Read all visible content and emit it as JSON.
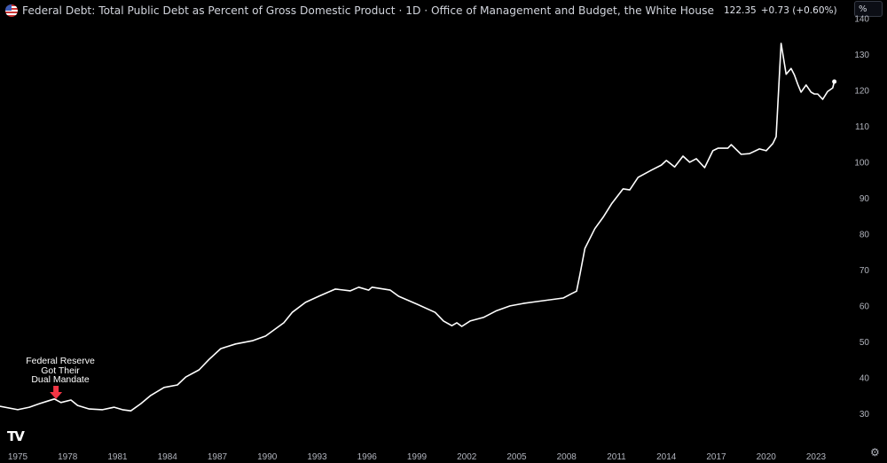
{
  "header": {
    "title": "Federal Debt: Total Public Debt as Percent of Gross Domestic Product · 1D · Office of Management and Budget, the White House",
    "price": "122.35",
    "change": "+0.73 (+0.60%)",
    "unit_button": "%",
    "flag_icon": "us-flag-icon"
  },
  "annotation": {
    "lines": [
      "Federal Reserve",
      "Got Their",
      "Dual Mandate"
    ],
    "arrow_color": "#f23645",
    "year": 1977.3
  },
  "logo": "TV",
  "chart_data": {
    "type": "line",
    "title": "Federal Debt: Total Public Debt as Percent of Gross Domestic Product",
    "xlabel": "",
    "ylabel": "",
    "ylim": [
      21,
      143
    ],
    "xlim": [
      1973.9,
      2027.2
    ],
    "grid": false,
    "line_color": "#ffffff",
    "background": "#000000",
    "y_ticks": [
      30,
      40,
      50,
      60,
      70,
      80,
      90,
      100,
      110,
      120,
      130,
      140
    ],
    "x_ticks": [
      1975,
      1978,
      1981,
      1984,
      1987,
      1990,
      1993,
      1996,
      1999,
      2002,
      2005,
      2008,
      2011,
      2014,
      2017,
      2020,
      2023
    ],
    "series": [
      {
        "x": [
          1973.9,
          1975.0,
          1975.7,
          1976.3,
          1976.8,
          1977.2,
          1977.6,
          1978.2,
          1978.6,
          1979.3,
          1980.1,
          1980.8,
          1981.3,
          1981.8,
          1982.4,
          1983.0,
          1983.8,
          1984.6,
          1985.1,
          1985.9,
          1986.5,
          1987.2,
          1988.1,
          1989.1,
          1989.9,
          1991.0,
          1991.5,
          1992.3,
          1993.1,
          1994.1,
          1995.0,
          1995.5,
          1996.1,
          1996.3,
          1997.4,
          1997.9,
          1999.0,
          2000.1,
          2000.6,
          2001.1,
          2001.4,
          2001.7,
          2002.2,
          2003.0,
          2003.8,
          2004.6,
          2005.4,
          2006.2,
          2007.0,
          2007.8,
          2008.3,
          2008.6,
          2008.8,
          2009.1,
          2009.7,
          2010.2,
          2010.7,
          2011.4,
          2011.8,
          2012.3,
          2013.1,
          2013.7,
          2014.0,
          2014.5,
          2015.0,
          2015.4,
          2015.8,
          2016.3,
          2016.8,
          2017.1,
          2017.7,
          2017.9,
          2018.5,
          2019.0,
          2019.6,
          2020.0,
          2020.4,
          2020.6,
          2020.9,
          2021.2,
          2021.5,
          2021.7,
          2021.9,
          2022.1,
          2022.4,
          2022.7,
          2022.9,
          2023.1,
          2023.4,
          2023.7,
          2024.0,
          2024.1
        ],
        "y": [
          32.0,
          31.0,
          31.7,
          32.7,
          33.4,
          34.0,
          33.0,
          33.7,
          32.2,
          31.2,
          31.0,
          31.7,
          31.0,
          30.7,
          32.7,
          35.0,
          37.2,
          37.9,
          40.1,
          42.1,
          45.0,
          48.0,
          49.3,
          50.2,
          51.5,
          55.2,
          58.1,
          60.9,
          62.6,
          64.6,
          64.1,
          65.1,
          64.3,
          65.1,
          64.3,
          62.6,
          60.4,
          58.1,
          55.7,
          54.4,
          55.2,
          54.2,
          55.7,
          56.7,
          58.6,
          59.9,
          60.6,
          61.1,
          61.6,
          62.1,
          63.3,
          64.0,
          68.5,
          75.9,
          81.4,
          84.6,
          88.3,
          92.5,
          92.2,
          95.7,
          97.7,
          99.1,
          100.4,
          98.6,
          101.6,
          99.9,
          100.9,
          98.4,
          103.1,
          103.8,
          103.8,
          104.8,
          102.1,
          102.3,
          103.6,
          103.1,
          105.1,
          107.0,
          133.0,
          124.4,
          126.0,
          124.2,
          121.6,
          119.4,
          121.4,
          119.4,
          118.9,
          118.9,
          117.4,
          119.6,
          120.6,
          122.35
        ]
      }
    ]
  }
}
